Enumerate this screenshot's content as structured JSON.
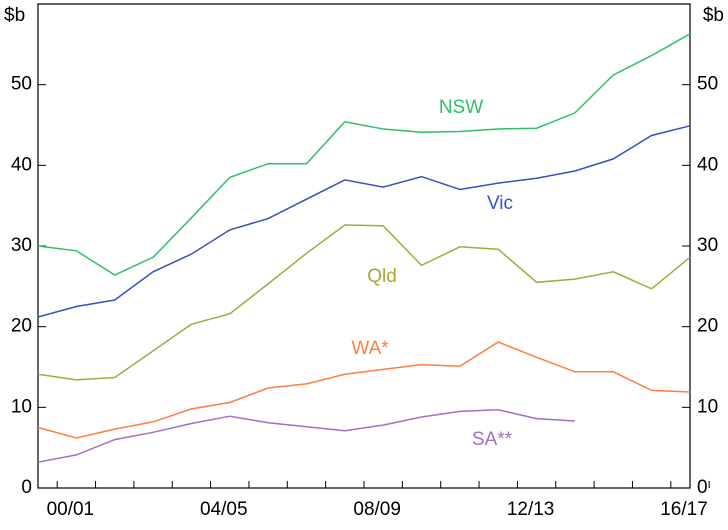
{
  "chart_data": {
    "type": "line",
    "y_label": "$b",
    "y2_label": "$b",
    "categories": [
      null,
      "00/01",
      null,
      null,
      null,
      "04/05",
      null,
      null,
      null,
      "08/09",
      null,
      null,
      null,
      "12/13",
      null,
      null,
      null,
      "16/17"
    ],
    "series": [
      {
        "name": "NSW",
        "color": "#2fbf6a",
        "values": [
          30.0,
          29.4,
          26.4,
          28.6,
          33.5,
          38.5,
          40.2,
          40.2,
          45.4,
          44.5,
          44.1,
          44.2,
          44.5,
          44.6,
          46.5,
          51.2,
          53.6,
          56.3
        ]
      },
      {
        "name": "Vic",
        "color": "#3a4fc0",
        "values": [
          21.2,
          22.5,
          23.3,
          26.8,
          29.0,
          32.0,
          33.4,
          35.8,
          38.2,
          37.3,
          38.6,
          37.0,
          37.8,
          38.4,
          39.3,
          40.8,
          43.7,
          44.9
        ]
      },
      {
        "name": "Qld",
        "color": "#a6a83c",
        "values": [
          14.1,
          13.4,
          13.7,
          17.0,
          20.3,
          21.6,
          25.3,
          29.1,
          32.6,
          32.5,
          27.6,
          29.9,
          29.6,
          25.5,
          25.9,
          26.8,
          24.7,
          28.6
        ]
      },
      {
        "name": "WA*",
        "color": "#ff7d40",
        "values": [
          7.5,
          6.2,
          7.3,
          8.2,
          9.8,
          10.6,
          12.4,
          12.9,
          14.1,
          14.7,
          15.3,
          15.1,
          18.1,
          16.2,
          14.4,
          14.4,
          12.1,
          11.9
        ]
      },
      {
        "name": "SA**",
        "color": "#a070c8",
        "values": [
          3.2,
          4.1,
          6.0,
          6.9,
          8.0,
          8.9,
          8.1,
          7.6,
          7.1,
          7.8,
          8.8,
          9.5,
          9.7,
          8.6,
          8.3,
          null,
          null,
          null
        ]
      }
    ],
    "ylim": [
      0,
      60
    ],
    "yticks": [
      0,
      10,
      20,
      30,
      40,
      50
    ],
    "y2lim": [
      0,
      60
    ],
    "y2ticks": [
      0,
      10,
      20,
      30,
      40,
      50
    ]
  }
}
